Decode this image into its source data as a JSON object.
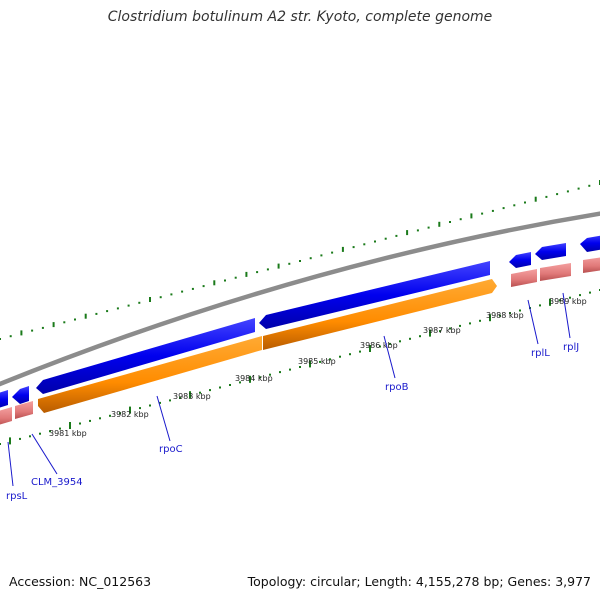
{
  "title": "Clostridium botulinum A2 str. Kyoto, complete genome",
  "footer": {
    "accession": "Accession: NC_012563",
    "summary": "Topology: circular; Length: 4,155,278 bp; Genes: 3,977"
  },
  "colors": {
    "backbone": "#8c8c8c",
    "cds": "#0000ee",
    "gene": "#ff8c00",
    "rna": "#e88080",
    "gc": "#1a7a1a",
    "label": "#1a1acc"
  },
  "ticks": [
    "3981 kbp",
    "3982 kbp",
    "3983 kbp",
    "3984 kbp",
    "3985 kbp",
    "3986 kbp",
    "3987 kbp",
    "3988 kbp",
    "3989 kbp"
  ],
  "genes": [
    "rpsL",
    "CLM_3954",
    "rpoC",
    "rpoB",
    "rplL",
    "rplJ"
  ]
}
